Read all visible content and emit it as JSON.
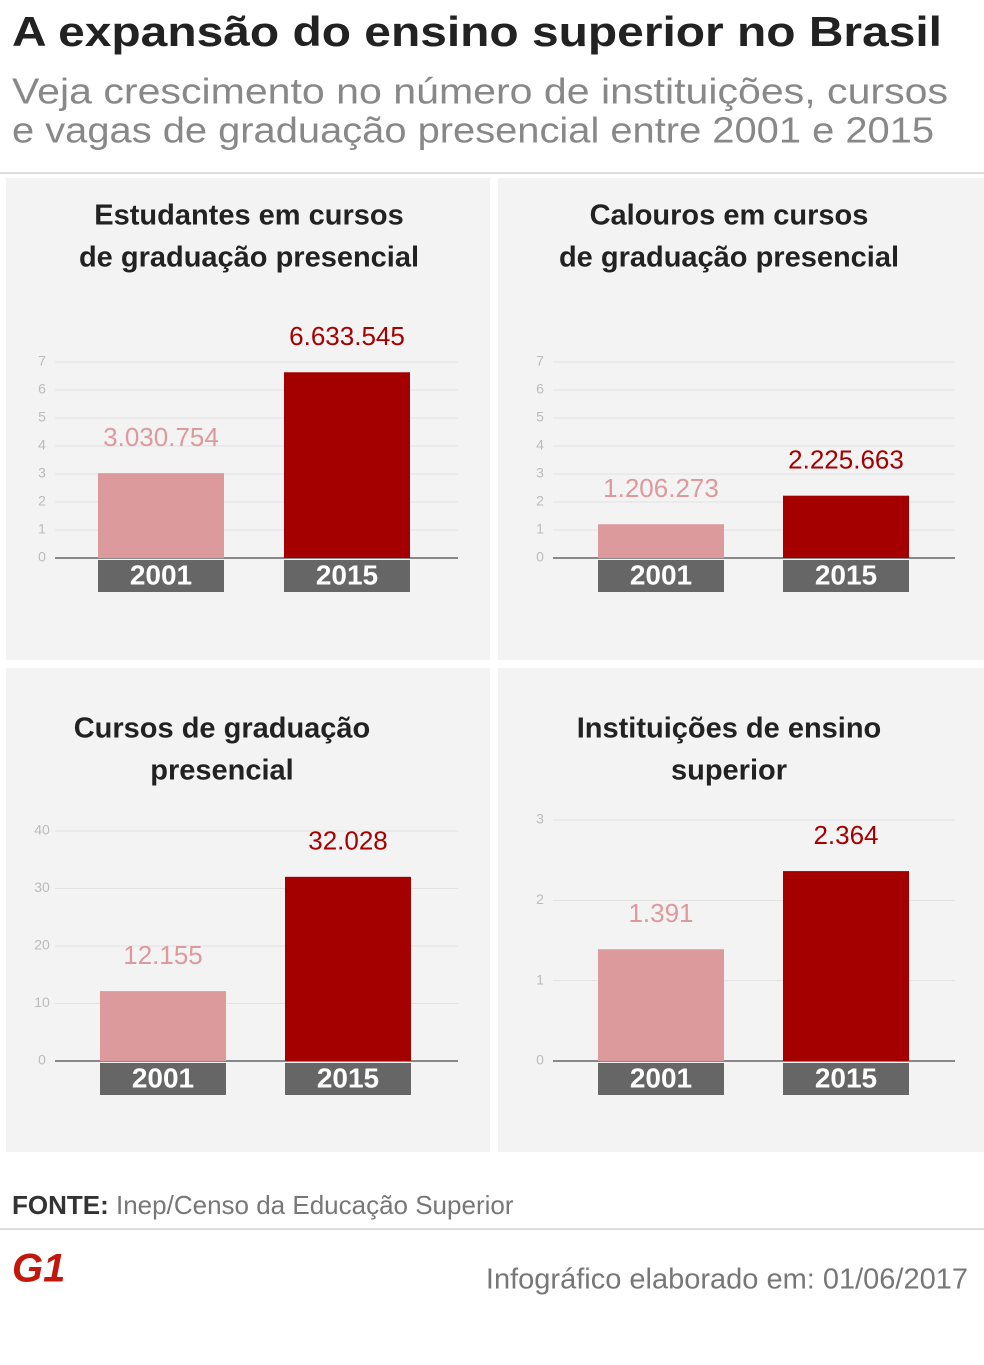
{
  "header": {
    "title": "A expansão do ensino superior no Brasil",
    "subtitle": [
      "Veja crescimento no número de instituições, cursos",
      "e vagas de graduação presencial entre 2001 e 2015"
    ]
  },
  "chart_data": [
    {
      "type": "bar",
      "title": [
        "Estudantes em cursos",
        "de graduação presencial"
      ],
      "categories": [
        "2001",
        "2015"
      ],
      "values": [
        3.030754,
        6.633545
      ],
      "value_labels": [
        "3.030.754",
        "6.633.545"
      ],
      "colors": [
        "#dd9a9c",
        "#a50000"
      ],
      "ylim": [
        0,
        7
      ],
      "yticks": [
        0,
        1,
        2,
        3,
        4,
        5,
        6,
        7
      ],
      "grid": true
    },
    {
      "type": "bar",
      "title": [
        "Calouros em cursos",
        "de graduação presencial"
      ],
      "categories": [
        "2001",
        "2015"
      ],
      "values": [
        1.206273,
        2.225663
      ],
      "value_labels": [
        "1.206.273",
        "2.225.663"
      ],
      "colors": [
        "#dd9a9c",
        "#a50000"
      ],
      "ylim": [
        0,
        7
      ],
      "yticks": [
        0,
        1,
        2,
        3,
        4,
        5,
        6,
        7
      ],
      "grid": true
    },
    {
      "type": "bar",
      "title": [
        "Cursos de graduação",
        "presencial"
      ],
      "categories": [
        "2001",
        "2015"
      ],
      "values": [
        12.155,
        32.028
      ],
      "value_labels": [
        "12.155",
        "32.028"
      ],
      "colors": [
        "#dd9a9c",
        "#a50000"
      ],
      "ylim": [
        0,
        40
      ],
      "yticks": [
        0,
        10,
        20,
        30,
        40
      ],
      "grid": true
    },
    {
      "type": "bar",
      "title": [
        "Instituições de ensino",
        "superior"
      ],
      "categories": [
        "2001",
        "2015"
      ],
      "values": [
        1.391,
        2.364
      ],
      "value_labels": [
        "1.391",
        "2.364"
      ],
      "colors": [
        "#dd9a9c",
        "#a50000"
      ],
      "ylim": [
        0,
        3
      ],
      "yticks": [
        0,
        1,
        2,
        3
      ],
      "grid": true
    }
  ],
  "footer": {
    "source_label": "FONTE:",
    "source": "Inep/Censo da Educação Superior",
    "logo": "G1",
    "date": "Infográfico elaborado em: 01/06/2017"
  }
}
